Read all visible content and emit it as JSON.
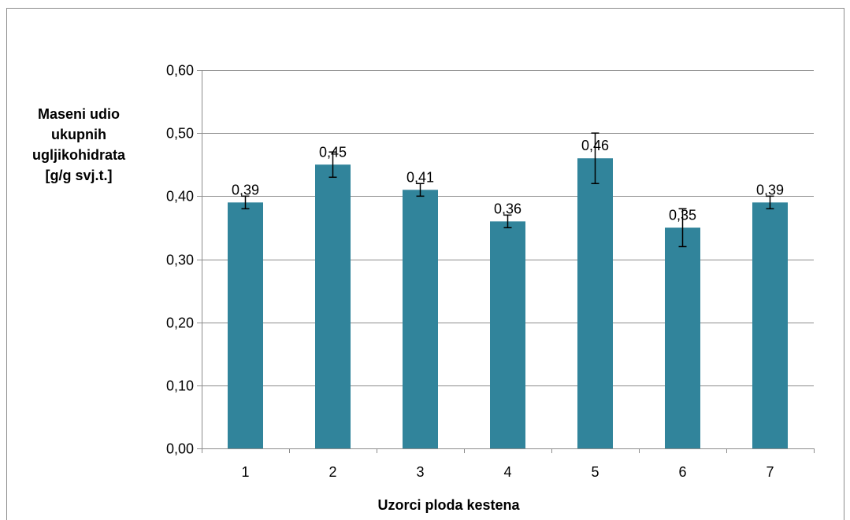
{
  "chart_data": {
    "type": "bar",
    "categories": [
      "1",
      "2",
      "3",
      "4",
      "5",
      "6",
      "7"
    ],
    "values": [
      0.39,
      0.45,
      0.41,
      0.36,
      0.46,
      0.35,
      0.39
    ],
    "error_bars": [
      0.01,
      0.02,
      0.01,
      0.01,
      0.04,
      0.03,
      0.01
    ],
    "data_labels": [
      "0,39",
      "0,45",
      "0,41",
      "0,36",
      "0,46",
      "0,35",
      "0,39"
    ],
    "ylabel_lines": [
      "Maseni udio",
      "ukupnih",
      "ugljikohidrata",
      "[g/g svj.t.]"
    ],
    "xlabel": "Uzorci ploda kestena",
    "ylim": [
      0,
      0.6
    ],
    "yticks": [
      0,
      0.1,
      0.2,
      0.3,
      0.4,
      0.5,
      0.6
    ],
    "ytick_labels": [
      "0,00",
      "0,10",
      "0,20",
      "0,30",
      "0,40",
      "0,50",
      "0,60"
    ],
    "grid": true,
    "legend": "none",
    "bar_color": "#31849b",
    "grid_color": "#8c8c8c"
  }
}
